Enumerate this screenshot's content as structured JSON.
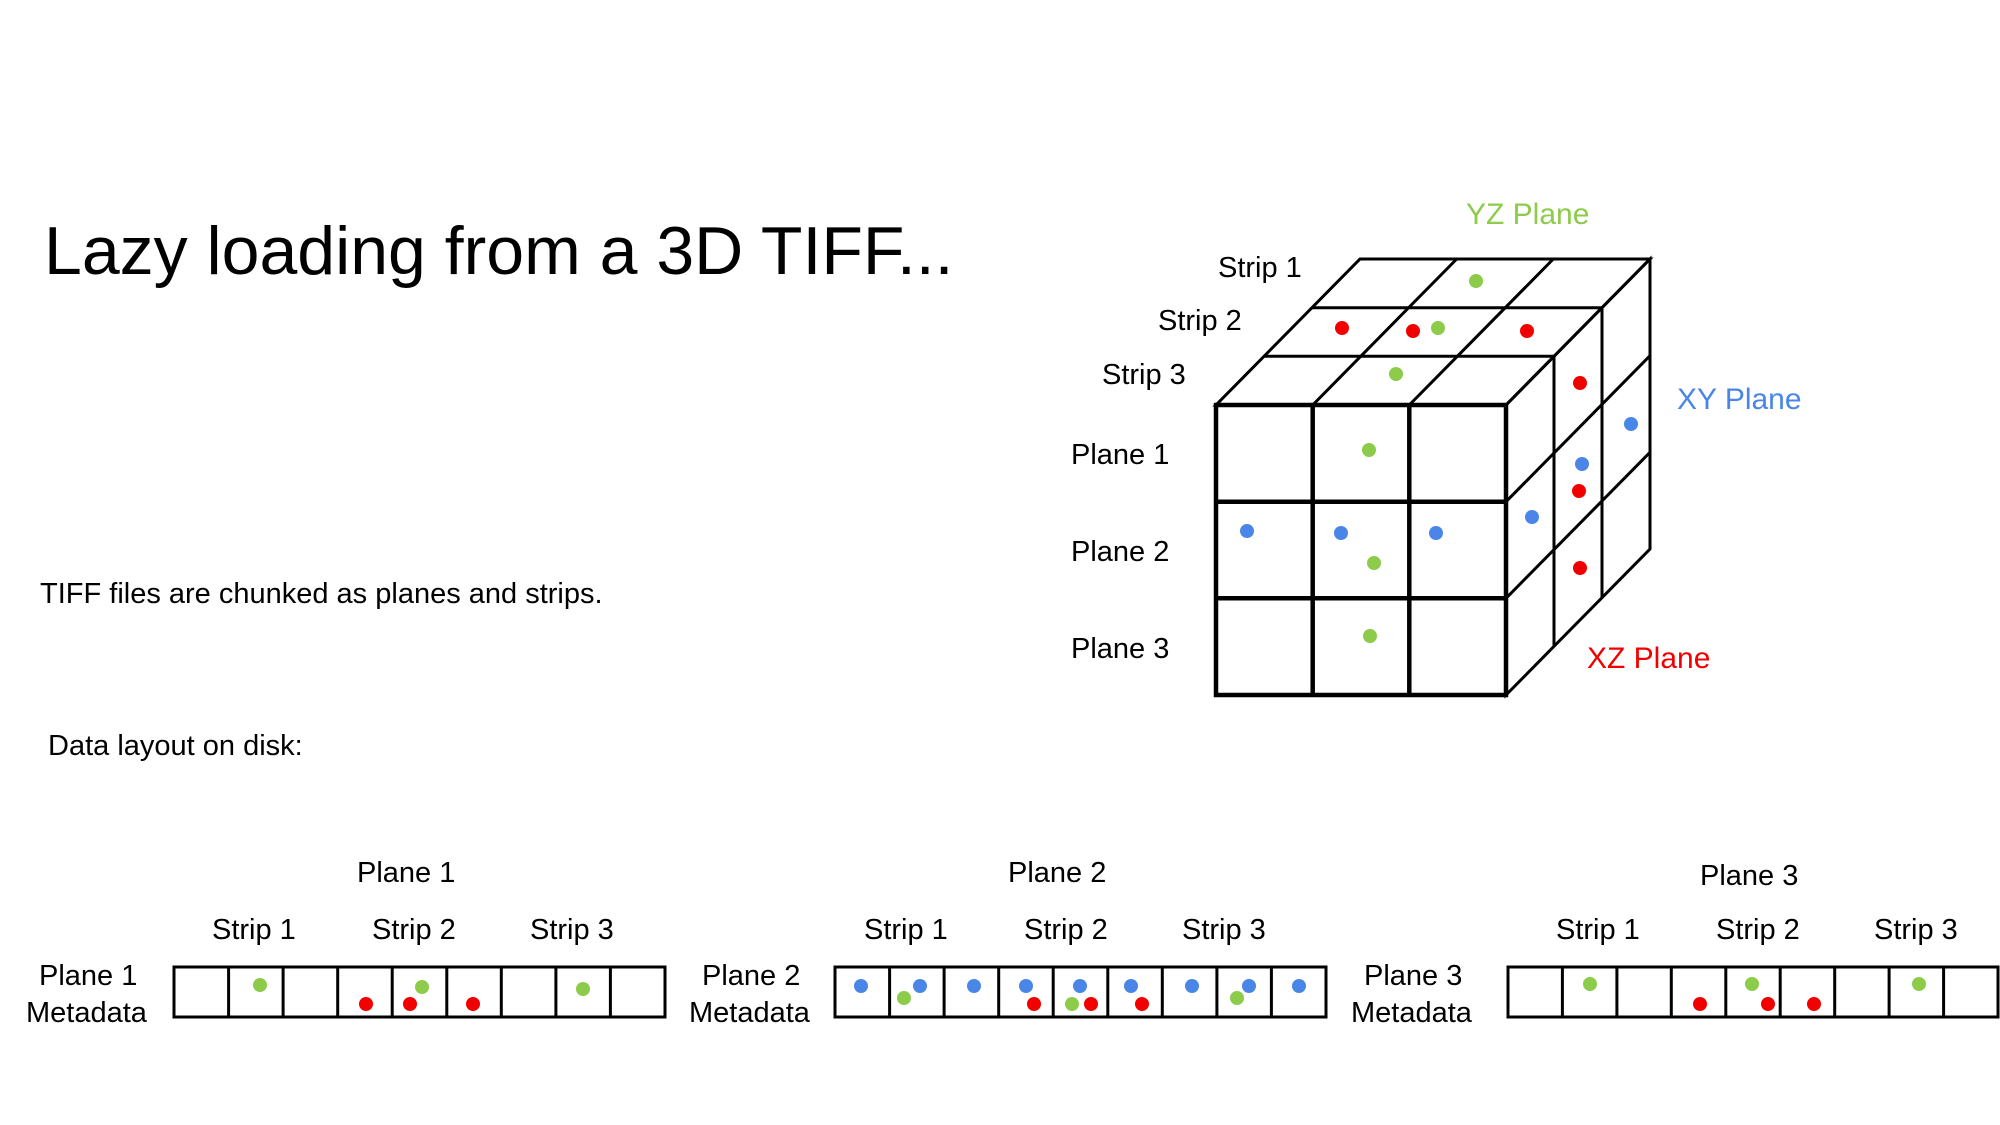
{
  "title": "Lazy loading from a 3D TIFF...",
  "description": "TIFF files are chunked as planes and strips.",
  "layout_heading": "Data layout on disk:",
  "colors": {
    "yz": "#8DCB4B",
    "xy": "#4A86E8",
    "xz": "#F20000"
  },
  "cube": {
    "strip_labels": [
      "Strip 1",
      "Strip 2",
      "Strip 3"
    ],
    "plane_labels": [
      "Plane 1",
      "Plane 2",
      "Plane 3"
    ],
    "yz_plane_label": "YZ Plane",
    "xy_plane_label": "XY Plane",
    "xz_plane_label": "XZ Plane"
  },
  "disk": [
    {
      "plane_label": "Plane 1",
      "strip_labels": [
        "Strip 1",
        "Strip 2",
        "Strip 3"
      ],
      "metadata_label": [
        "Plane 1",
        "Metadata"
      ]
    },
    {
      "plane_label": "Plane 2",
      "strip_labels": [
        "Strip 1",
        "Strip 2",
        "Strip 3"
      ],
      "metadata_label": [
        "Plane 2",
        "Metadata"
      ]
    },
    {
      "plane_label": "Plane 3",
      "strip_labels": [
        "Strip 1",
        "Strip 2",
        "Strip 3"
      ],
      "metadata_label": [
        "Plane 3",
        "Metadata"
      ]
    }
  ]
}
